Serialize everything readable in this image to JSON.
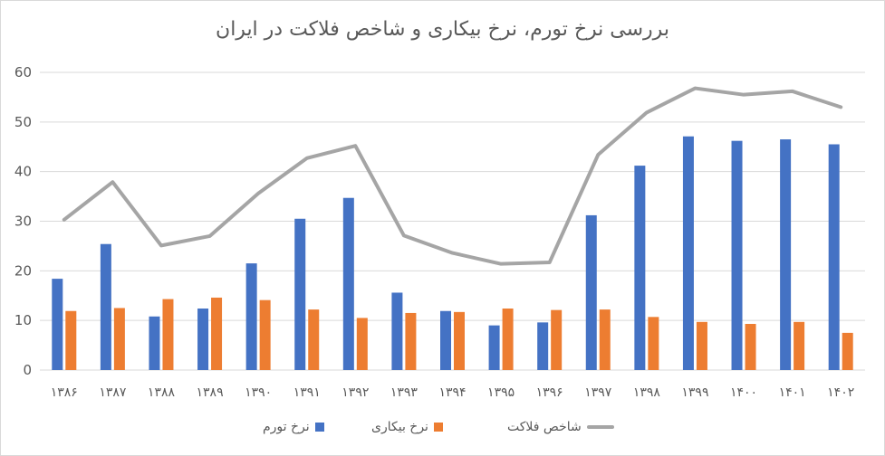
{
  "chart_data": {
    "type": "bar",
    "title": "بررسی نرخ تورم، نرخ بیکاری و شاخص فلاکت در ایران",
    "categories": [
      "۱۳۸۶",
      "۱۳۸۷",
      "۱۳۸۸",
      "۱۳۸۹",
      "۱۳۹۰",
      "۱۳۹۱",
      "۱۳۹۲",
      "۱۳۹۳",
      "۱۳۹۴",
      "۱۳۹۵",
      "۱۳۹۶",
      "۱۳۹۷",
      "۱۳۹۸",
      "۱۳۹۹",
      "۱۴۰۰",
      "۱۴۰۱",
      "۱۴۰۲"
    ],
    "ylim": [
      0,
      60
    ],
    "yticks": [
      "0",
      "10",
      "20",
      "30",
      "40",
      "50",
      "60"
    ],
    "grid": true,
    "legend_position": "bottom",
    "series": [
      {
        "name": "نرخ تورم",
        "type": "bar",
        "color": "#4472c4",
        "values": [
          18.4,
          25.4,
          10.8,
          12.4,
          21.5,
          30.5,
          34.7,
          15.6,
          11.9,
          9.0,
          9.6,
          31.2,
          41.2,
          47.1,
          46.2,
          46.5,
          45.5
        ]
      },
      {
        "name": "نرخ بیکاری",
        "type": "bar",
        "color": "#ed7d31",
        "values": [
          11.9,
          12.5,
          14.3,
          14.6,
          14.1,
          12.2,
          10.5,
          11.5,
          11.7,
          12.4,
          12.1,
          12.2,
          10.7,
          9.7,
          9.3,
          9.7,
          7.5
        ]
      },
      {
        "name": "شاخص فلاکت",
        "type": "line",
        "color": "#a5a5a5",
        "values": [
          30.3,
          37.9,
          25.1,
          27.0,
          35.6,
          42.7,
          45.2,
          27.1,
          23.6,
          21.4,
          21.7,
          43.4,
          51.9,
          56.8,
          55.5,
          56.2,
          53.0
        ]
      }
    ]
  }
}
